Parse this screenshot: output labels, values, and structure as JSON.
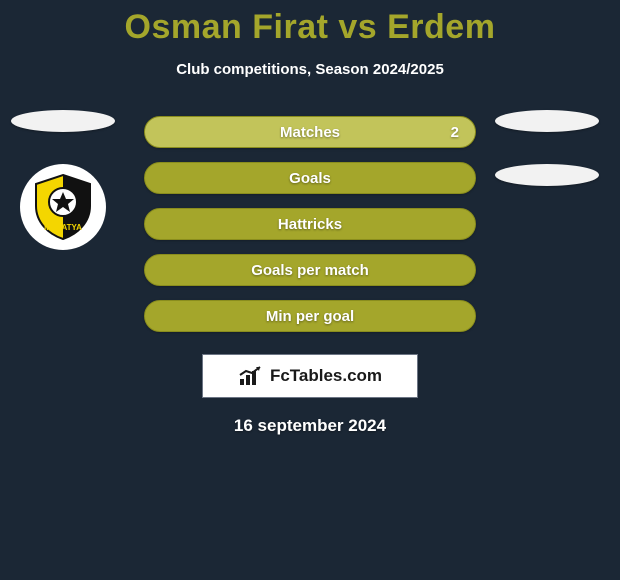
{
  "title": "Osman Firat vs Erdem",
  "subtitle": "Club competitions, Season 2024/2025",
  "bars": [
    {
      "key": "matches",
      "label": "Matches",
      "value": "2",
      "variant": "matches"
    },
    {
      "key": "goals",
      "label": "Goals",
      "value": "",
      "variant": "normal"
    },
    {
      "key": "hattricks",
      "label": "Hattricks",
      "value": "",
      "variant": "normal"
    },
    {
      "key": "gpm",
      "label": "Goals per match",
      "value": "",
      "variant": "normal"
    },
    {
      "key": "mpg",
      "label": "Min per goal",
      "value": "",
      "variant": "normal"
    }
  ],
  "brand": "FcTables.com",
  "date": "16 september 2024",
  "colors": {
    "background": "#1b2735",
    "accent": "#a4a62b",
    "accent_light": "#c2c45a",
    "text": "#ffffff"
  },
  "left_club": {
    "name": "Yeni Malatyaspor",
    "badge_primary": "#f4d600",
    "badge_secondary": "#111111"
  }
}
